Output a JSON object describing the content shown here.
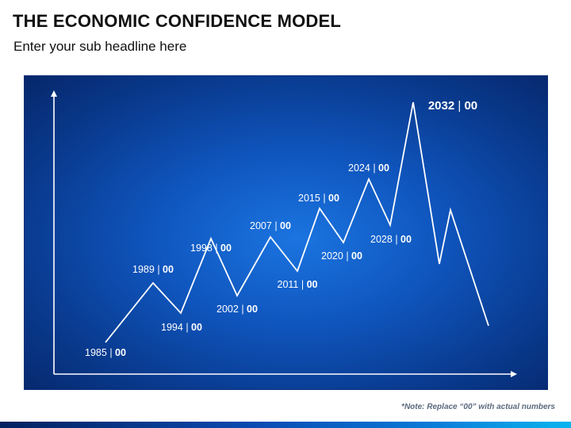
{
  "title": "THE ECONOMIC CONFIDENCE MODEL",
  "subtitle": "Enter your sub headline here",
  "note": "*Note: Replace “00” with actual numbers",
  "colors": {
    "panel": "#0f55bd",
    "line": "#ffffff",
    "footer_start": "#04215e",
    "footer_end": "#0bb4ef"
  },
  "separator": " | ",
  "points": [
    {
      "year": "1985",
      "value": "00"
    },
    {
      "year": "1989",
      "value": "00"
    },
    {
      "year": "1994",
      "value": "00"
    },
    {
      "year": "1998",
      "value": "00"
    },
    {
      "year": "2002",
      "value": "00"
    },
    {
      "year": "2007",
      "value": "00"
    },
    {
      "year": "2011",
      "value": "00"
    },
    {
      "year": "2015",
      "value": "00"
    },
    {
      "year": "2020",
      "value": "00"
    },
    {
      "year": "2024",
      "value": "00"
    },
    {
      "year": "2028",
      "value": "00"
    },
    {
      "year": "2032",
      "value": "00"
    }
  ]
}
